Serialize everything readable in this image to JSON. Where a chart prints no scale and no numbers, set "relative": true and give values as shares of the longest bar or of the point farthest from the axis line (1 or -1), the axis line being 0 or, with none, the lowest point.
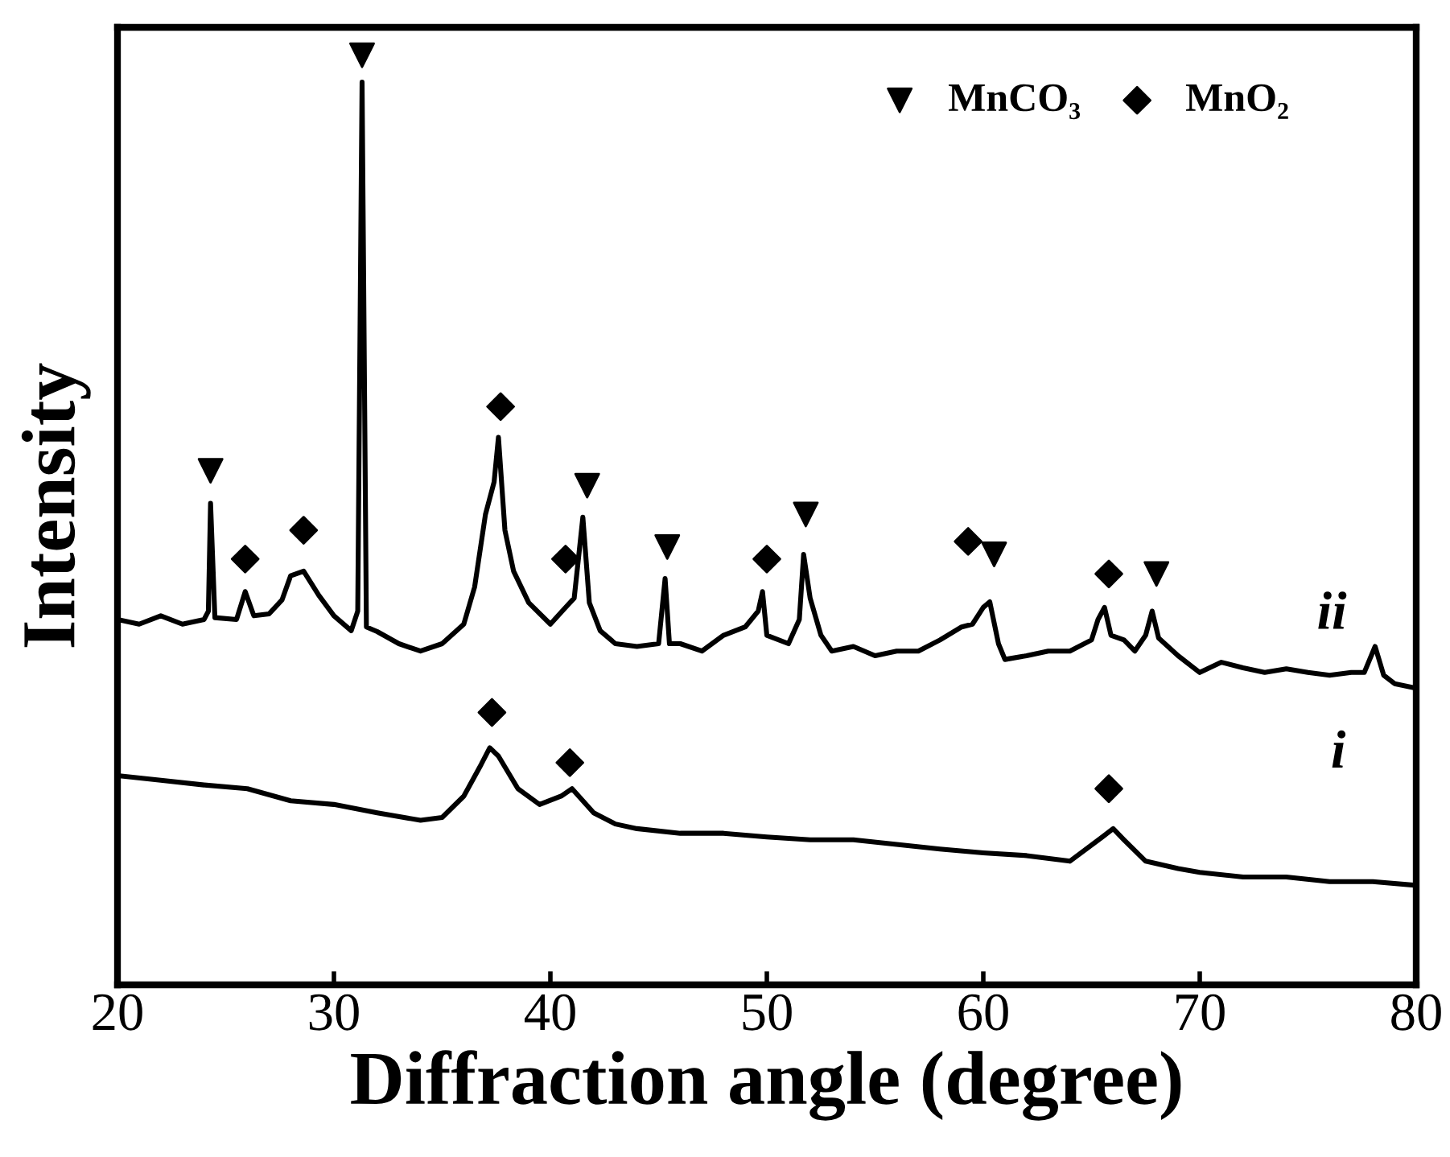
{
  "chart_data": {
    "type": "line",
    "relative": true,
    "xlabel": "Diffraction angle (degree)",
    "ylabel": "Intensity",
    "xlim": [
      20,
      80
    ],
    "xticks": [
      20,
      30,
      40,
      50,
      60,
      70,
      80
    ],
    "tick_labels": "x",
    "grid": false,
    "legend": "top right",
    "line_style": "solid",
    "annotations": [
      "ii",
      "i"
    ],
    "series": [
      {
        "color": "#000000",
        "marker": "none",
        "x": [
          20,
          21,
          22,
          23,
          24,
          24.2,
          24.3,
          24.5,
          25.5,
          25.9,
          26.3,
          27,
          27.6,
          28,
          28.6,
          29.3,
          30,
          30.8,
          31.1,
          31.3,
          31.5,
          32,
          33,
          34,
          35,
          36,
          36.5,
          37,
          37.4,
          37.6,
          37.9,
          38.3,
          39,
          40,
          40.7,
          41.1,
          41.5,
          41.8,
          42.3,
          43,
          44,
          45,
          45.3,
          45.5,
          46,
          47,
          48,
          49,
          49.6,
          49.8,
          50,
          51,
          51.5,
          51.7,
          52,
          52.5,
          53,
          54,
          55,
          56,
          57,
          58,
          59,
          59.5,
          60,
          60.3,
          60.7,
          61,
          62,
          63,
          64,
          65,
          65.3,
          65.6,
          65.9,
          66.5,
          67,
          67.5,
          67.8,
          68.1,
          69,
          70,
          71,
          72,
          73,
          74,
          75,
          76,
          77,
          77.6,
          78.1,
          78.5,
          79,
          80
        ],
        "values": [
          0.393,
          0.388,
          0.397,
          0.388,
          0.393,
          0.402,
          0.518,
          0.395,
          0.393,
          0.423,
          0.397,
          0.399,
          0.414,
          0.44,
          0.445,
          0.419,
          0.397,
          0.381,
          0.402,
          0.971,
          0.385,
          0.38,
          0.367,
          0.359,
          0.367,
          0.388,
          0.428,
          0.506,
          0.541,
          0.589,
          0.489,
          0.445,
          0.411,
          0.388,
          0.406,
          0.416,
          0.503,
          0.411,
          0.381,
          0.367,
          0.364,
          0.367,
          0.437,
          0.367,
          0.367,
          0.359,
          0.376,
          0.385,
          0.402,
          0.423,
          0.376,
          0.367,
          0.393,
          0.463,
          0.416,
          0.376,
          0.359,
          0.364,
          0.354,
          0.359,
          0.359,
          0.371,
          0.385,
          0.388,
          0.406,
          0.412,
          0.367,
          0.35,
          0.354,
          0.359,
          0.359,
          0.371,
          0.393,
          0.406,
          0.376,
          0.371,
          0.359,
          0.376,
          0.402,
          0.373,
          0.354,
          0.336,
          0.347,
          0.341,
          0.336,
          0.34,
          0.336,
          0.333,
          0.336,
          0.336,
          0.364,
          0.333,
          0.324,
          0.319
        ]
      },
      {
        "color": "#000000",
        "marker": "none",
        "x": [
          20,
          22,
          24,
          26,
          28,
          30,
          32,
          34,
          35,
          36,
          36.8,
          37.2,
          37.6,
          38.5,
          39.5,
          40.5,
          41,
          42,
          43,
          44,
          46,
          48,
          50,
          52,
          54,
          56,
          58,
          60,
          62,
          64,
          65.5,
          66,
          66.5,
          67.5,
          69,
          70,
          72,
          74,
          76,
          78,
          80
        ],
        "values": [
          0.225,
          0.22,
          0.215,
          0.211,
          0.198,
          0.194,
          0.185,
          0.177,
          0.18,
          0.203,
          0.237,
          0.255,
          0.246,
          0.211,
          0.194,
          0.203,
          0.211,
          0.185,
          0.173,
          0.168,
          0.163,
          0.163,
          0.159,
          0.156,
          0.156,
          0.151,
          0.146,
          0.142,
          0.139,
          0.133,
          0.159,
          0.168,
          0.156,
          0.133,
          0.125,
          0.121,
          0.116,
          0.116,
          0.111,
          0.111,
          0.107
        ]
      },
      {
        "type": "scatter",
        "name": "MnCO₃",
        "color": "#000000",
        "marker": "triangle",
        "x": [
          24.3,
          31.3,
          41.7,
          45.4,
          51.8,
          60.5,
          68.0
        ],
        "values": [
          0.553,
          1.0,
          0.537,
          0.471,
          0.506,
          0.463,
          0.442
        ]
      },
      {
        "type": "scatter",
        "name": "MnO₂",
        "color": "#000000",
        "marker": "diamond",
        "x": [
          25.9,
          28.6,
          37.7,
          40.7,
          50.0,
          59.3,
          65.8,
          37.3,
          40.9,
          65.8
        ],
        "values": [
          0.458,
          0.489,
          0.622,
          0.458,
          0.458,
          0.477,
          0.442,
          0.293,
          0.239,
          0.211
        ]
      }
    ]
  }
}
